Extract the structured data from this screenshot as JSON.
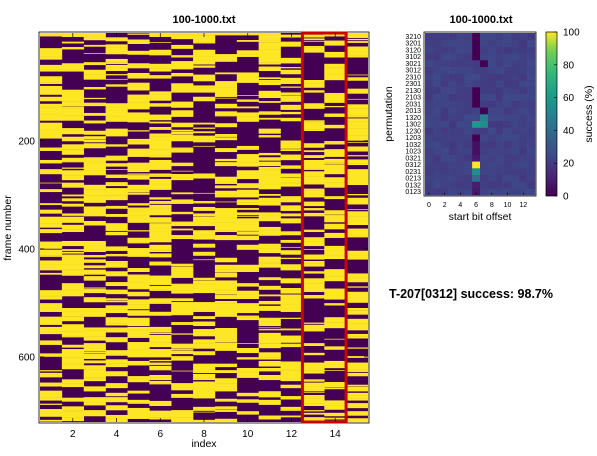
{
  "chart_data": [
    {
      "type": "heatmap",
      "title": "100-1000.txt",
      "xlabel": "index",
      "ylabel": "frame number",
      "x_range": [
        1,
        15
      ],
      "y_range": [
        1,
        720
      ],
      "x_ticks": [
        2,
        4,
        6,
        8,
        10,
        12,
        14
      ],
      "y_ticks": [
        200,
        400,
        600
      ],
      "y_reversed": true,
      "value_levels": [
        0,
        1
      ],
      "colormap": [
        "#440154",
        "#fde725"
      ],
      "highlight": {
        "x_from": 13,
        "x_to": 14,
        "color": "#cc0000"
      },
      "grid": false
    },
    {
      "type": "heatmap",
      "title": "100-1000.txt",
      "xlabel": "start bit offset",
      "ylabel": "permutation",
      "x_ticks": [
        0,
        2,
        4,
        6,
        8,
        10,
        12
      ],
      "x_range": [
        0,
        13
      ],
      "y_categories": [
        "0123",
        "0132",
        "0213",
        "0231",
        "0312",
        "0321",
        "1023",
        "1032",
        "1203",
        "1230",
        "1302",
        "1320",
        "2013",
        "2031",
        "2103",
        "2130",
        "2301",
        "2310",
        "3012",
        "3021",
        "3102",
        "3120",
        "3201",
        "3210"
      ],
      "colorbar": {
        "label": "success (%)",
        "ticks": [
          0,
          20,
          40,
          60,
          80,
          100
        ],
        "range": [
          0,
          100
        ]
      },
      "base_value": 22,
      "cells": [
        {
          "x": 6,
          "y": "0312",
          "value": 100
        },
        {
          "x": 6,
          "y": "0231",
          "value": 55
        },
        {
          "x": 6,
          "y": "0213",
          "value": 40
        },
        {
          "x": 6,
          "y": "1302",
          "value": 60
        },
        {
          "x": 7,
          "y": "1302",
          "value": 55
        },
        {
          "x": 7,
          "y": "1320",
          "value": 50
        },
        {
          "x": 6,
          "y": "3102",
          "value": 0
        },
        {
          "x": 6,
          "y": "3120",
          "value": 0
        },
        {
          "x": 6,
          "y": "3201",
          "value": 0
        },
        {
          "x": 6,
          "y": "3210",
          "value": 0
        },
        {
          "x": 7,
          "y": "3021",
          "value": 0
        },
        {
          "x": 6,
          "y": "2130",
          "value": 0
        },
        {
          "x": 6,
          "y": "2103",
          "value": 0
        },
        {
          "x": 6,
          "y": "2031",
          "value": 0
        },
        {
          "x": 7,
          "y": "2013",
          "value": 0
        },
        {
          "x": 6,
          "y": "1203",
          "value": 0
        },
        {
          "x": 6,
          "y": "1032",
          "value": 5
        },
        {
          "x": 6,
          "y": "1023",
          "value": 5
        },
        {
          "x": 6,
          "y": "0321",
          "value": 8
        },
        {
          "x": 6,
          "y": "0132",
          "value": 10
        },
        {
          "x": 6,
          "y": "0123",
          "value": 8
        }
      ],
      "grid": false
    }
  ],
  "result_text": "T-207[0312] success: 98.7%"
}
